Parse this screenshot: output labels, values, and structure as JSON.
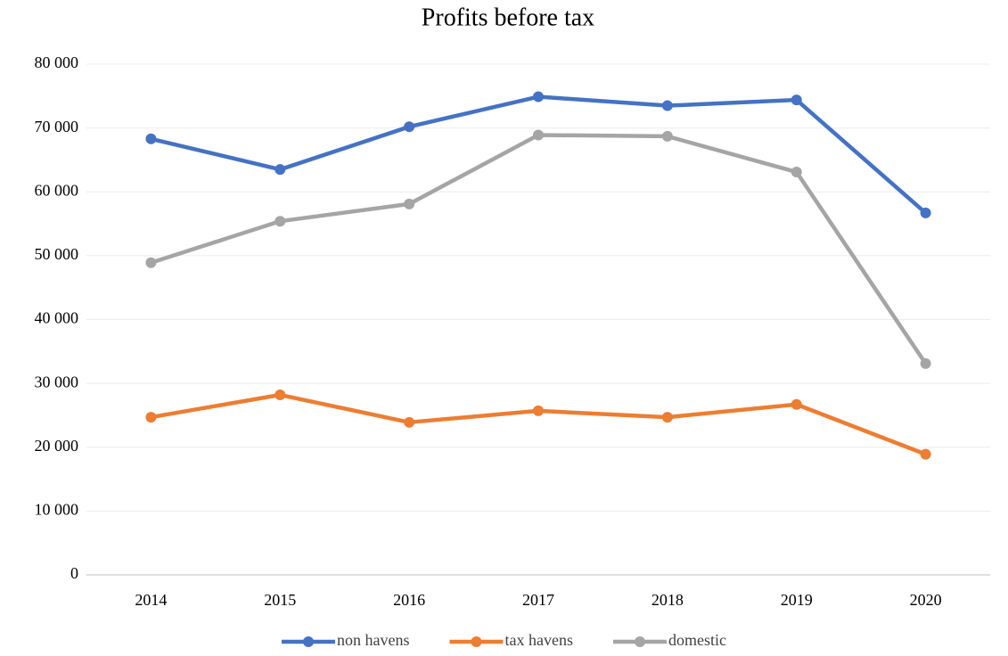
{
  "chart_data": {
    "type": "line",
    "title": "Profits before tax",
    "categories": [
      "2014",
      "2015",
      "2016",
      "2017",
      "2018",
      "2019",
      "2020"
    ],
    "series": [
      {
        "name": "non havens",
        "color": "#4472c4",
        "values": [
          68300,
          63500,
          70200,
          74900,
          73500,
          74400,
          56700
        ]
      },
      {
        "name": "tax havens",
        "color": "#ed7d31",
        "values": [
          24700,
          28200,
          23900,
          25700,
          24700,
          26700,
          18900
        ]
      },
      {
        "name": "domestic",
        "color": "#a5a5a5",
        "values": [
          48900,
          55400,
          58100,
          68900,
          68700,
          63100,
          33100
        ]
      }
    ],
    "ylim": [
      0,
      80000
    ],
    "yticks": [
      {
        "value": 0,
        "label": "0"
      },
      {
        "value": 10000,
        "label": "10 000"
      },
      {
        "value": 20000,
        "label": "20 000"
      },
      {
        "value": 30000,
        "label": "30 000"
      },
      {
        "value": 40000,
        "label": "40 000"
      },
      {
        "value": 50000,
        "label": "50 000"
      },
      {
        "value": 60000,
        "label": "60 000"
      },
      {
        "value": 70000,
        "label": "70 000"
      },
      {
        "value": 80000,
        "label": "80 000"
      }
    ],
    "grid": true,
    "legend": "bottom"
  }
}
